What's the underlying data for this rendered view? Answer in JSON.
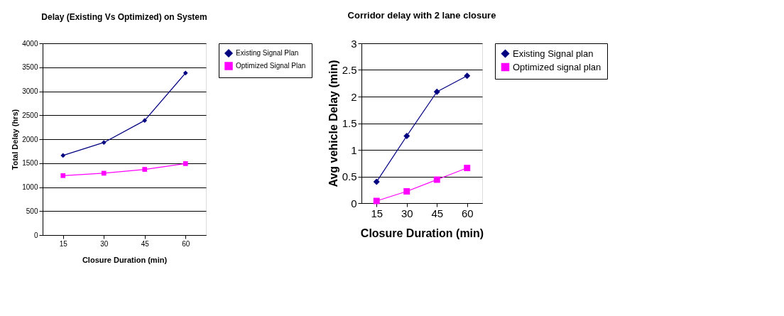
{
  "chart_data": [
    {
      "type": "line",
      "title": "Delay (Existing Vs Optimized) on System",
      "xlabel": "Closure Duration (min)",
      "ylabel": "Total Delay (hrs)",
      "categories": [
        "15",
        "30",
        "45",
        "60"
      ],
      "ylim": [
        0,
        4000
      ],
      "yticks": [
        0,
        500,
        1000,
        1500,
        2000,
        2500,
        3000,
        3500,
        4000
      ],
      "grid": "y",
      "legend": "right",
      "line_style": "solid",
      "series": [
        {
          "name": "Existing Signal Plan",
          "color": "#000080",
          "marker": "diamond",
          "values": [
            1660,
            1930,
            2390,
            3380
          ]
        },
        {
          "name": "Optimized Signal Plan",
          "color": "#ff00ff",
          "marker": "square",
          "values": [
            1240,
            1290,
            1370,
            1490
          ]
        }
      ]
    },
    {
      "type": "line",
      "title": "Corridor delay with 2 lane closure",
      "xlabel": "Closure Duration (min)",
      "ylabel": "Avg vehicle Delay (min)",
      "categories": [
        "15",
        "30",
        "45",
        "60"
      ],
      "ylim": [
        0,
        3
      ],
      "yticks": [
        0,
        0.5,
        1,
        1.5,
        2,
        2.5,
        3
      ],
      "grid": "y",
      "legend": "right",
      "line_style": "solid",
      "series": [
        {
          "name": "Existing Signal plan",
          "color": "#000080",
          "marker": "diamond",
          "values": [
            0.4,
            1.26,
            2.09,
            2.39
          ]
        },
        {
          "name": "Optimized signal plan",
          "color": "#ff00ff",
          "marker": "square",
          "values": [
            0.04,
            0.22,
            0.44,
            0.66
          ]
        }
      ]
    }
  ]
}
